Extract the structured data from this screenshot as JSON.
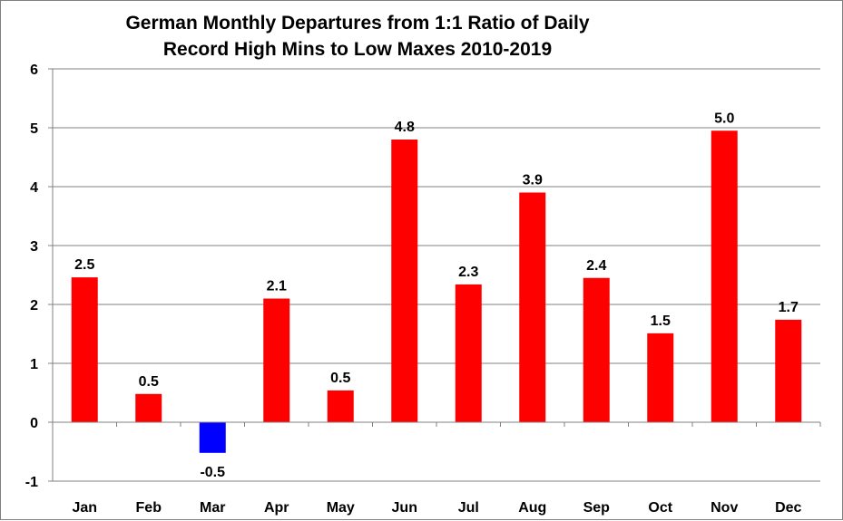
{
  "chart_data": {
    "type": "bar",
    "title": [
      "German Monthly Departures from 1:1 Ratio of Daily",
      "Record High Mins to Low Maxes 2010-2019"
    ],
    "categories": [
      "Jan",
      "Feb",
      "Mar",
      "Apr",
      "May",
      "Jun",
      "Jul",
      "Aug",
      "Sep",
      "Oct",
      "Nov",
      "Dec"
    ],
    "values": [
      2.46,
      0.48,
      -0.52,
      2.1,
      0.54,
      4.8,
      2.34,
      3.9,
      2.45,
      1.51,
      4.95,
      1.74
    ],
    "data_labels": [
      "2.5",
      "0.5",
      "-0.5",
      "2.1",
      "0.5",
      "4.8",
      "2.3",
      "3.9",
      "2.4",
      "1.5",
      "5.0",
      "1.7"
    ],
    "ylim": [
      -1,
      6
    ],
    "yticks": [
      "-1",
      "0",
      "1",
      "2",
      "3",
      "4",
      "5",
      "6"
    ],
    "grid": true,
    "legend": "none",
    "colors": {
      "positive": "#ff0000",
      "negative": "#0000ff",
      "grid": "#808080",
      "axis": "#808080"
    }
  }
}
